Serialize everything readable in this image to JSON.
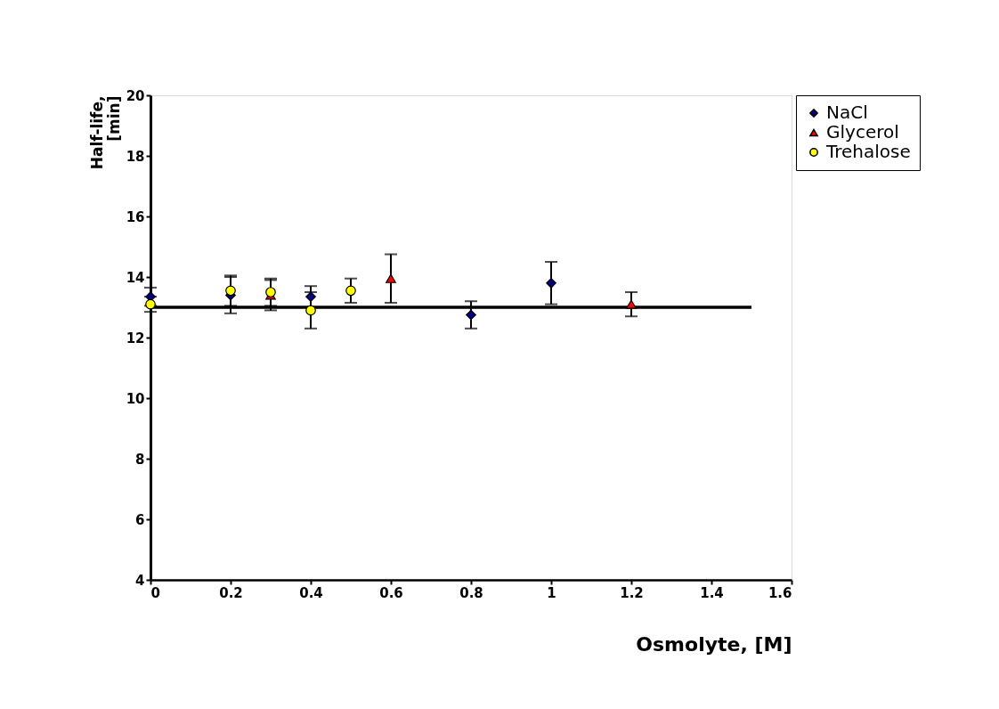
{
  "chart_data": {
    "type": "scatter",
    "xlabel": "Osmolyte, [M]",
    "ylabel": "Half-life, [min]",
    "xlim": [
      0,
      1.6
    ],
    "xticks": [
      0,
      0.2,
      0.4,
      0.6,
      0.8,
      1,
      1.2,
      1.4,
      1.6
    ],
    "ylim": [
      4,
      20
    ],
    "yticks": [
      4,
      6,
      8,
      10,
      12,
      14,
      16,
      18,
      20
    ],
    "grid": false,
    "legend": "right",
    "series": [
      {
        "type": "line",
        "color": "#000000",
        "x": [
          0,
          1.5
        ],
        "values": [
          13,
          13
        ],
        "marker": "none"
      },
      {
        "name": "NaCl",
        "color": "#000080",
        "marker": "diamond",
        "x": [
          0,
          0.2,
          0.4,
          0.8,
          1.0
        ],
        "values": [
          13.35,
          13.4,
          13.35,
          12.75,
          13.8
        ],
        "errors": [
          0.3,
          0.6,
          0.35,
          0.45,
          0.7
        ]
      },
      {
        "name": "Glycerol",
        "color": "#ff0000",
        "marker": "triangle",
        "x": [
          0.3,
          0.6,
          1.2
        ],
        "values": [
          13.4,
          13.95,
          13.1
        ],
        "errors": [
          0.5,
          0.8,
          0.4
        ]
      },
      {
        "name": "Trehalose",
        "color": "#ffff00",
        "marker": "circle",
        "x": [
          0,
          0.2,
          0.3,
          0.4,
          0.5
        ],
        "values": [
          13.1,
          13.55,
          13.5,
          12.9,
          13.55
        ],
        "errors": [
          0.25,
          0.5,
          0.45,
          0.6,
          0.4
        ]
      }
    ]
  }
}
